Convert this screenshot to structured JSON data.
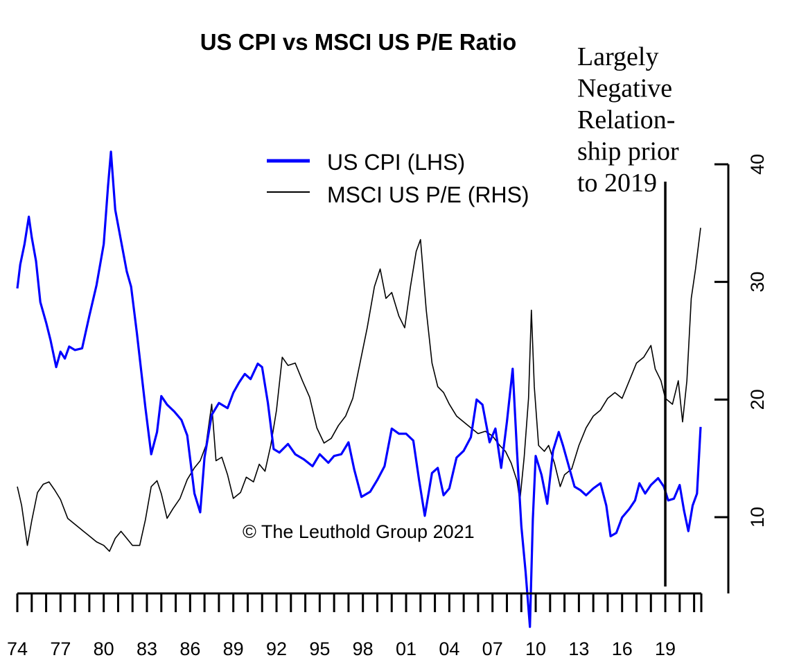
{
  "chart_data": {
    "type": "line",
    "title": "US CPI vs MSCI US P/E Ratio",
    "legend_placement": "top-center",
    "copyright": "© The Leuthold Group 2021",
    "annotation": [
      "Largely",
      "Negative",
      "Relation-",
      "ship prior",
      "to 2019"
    ],
    "x_range": [
      1974,
      2021.5
    ],
    "x_tick_labels": [
      "74",
      "77",
      "80",
      "83",
      "86",
      "89",
      "92",
      "95",
      "98",
      "01",
      "04",
      "07",
      "10",
      "13",
      "16",
      "19"
    ],
    "x_tick_years": [
      1974,
      1977,
      1980,
      1983,
      1986,
      1989,
      1992,
      1995,
      1998,
      2001,
      2004,
      2007,
      2010,
      2013,
      2016,
      2019
    ],
    "right_axis": {
      "label": "",
      "ylim": [
        3.5,
        40
      ],
      "ticks": [
        "10",
        "20",
        "30",
        "40"
      ],
      "tick_values": [
        10,
        20,
        30,
        40
      ]
    },
    "series": [
      {
        "name": "US CPI (LHS)",
        "axis": "left",
        "color": "#0000ff",
        "points": [
          [
            1974.0,
            14.6
          ],
          [
            1974.2,
            16.0
          ],
          [
            1974.5,
            17.2
          ],
          [
            1974.8,
            18.8
          ],
          [
            1975.0,
            17.6
          ],
          [
            1975.3,
            16.2
          ],
          [
            1975.6,
            13.8
          ],
          [
            1976.0,
            12.6
          ],
          [
            1976.3,
            11.6
          ],
          [
            1976.7,
            10.0
          ],
          [
            1977.0,
            10.9
          ],
          [
            1977.3,
            10.5
          ],
          [
            1977.6,
            11.2
          ],
          [
            1978.0,
            11.0
          ],
          [
            1978.5,
            11.1
          ],
          [
            1979.0,
            13.0
          ],
          [
            1979.5,
            14.8
          ],
          [
            1980.0,
            17.2
          ],
          [
            1980.3,
            20.6
          ],
          [
            1980.5,
            22.6
          ],
          [
            1980.8,
            19.2
          ],
          [
            1981.2,
            17.4
          ],
          [
            1981.6,
            15.6
          ],
          [
            1981.9,
            14.7
          ],
          [
            1982.3,
            12.0
          ],
          [
            1982.6,
            9.8
          ],
          [
            1982.9,
            7.6
          ],
          [
            1983.3,
            4.9
          ],
          [
            1983.7,
            6.2
          ],
          [
            1984.0,
            8.3
          ],
          [
            1984.4,
            7.8
          ],
          [
            1984.9,
            7.4
          ],
          [
            1985.4,
            6.9
          ],
          [
            1985.8,
            6.0
          ],
          [
            1986.3,
            2.6
          ],
          [
            1986.7,
            1.5
          ],
          [
            1987.0,
            4.7
          ],
          [
            1987.5,
            7.2
          ],
          [
            1988.0,
            7.9
          ],
          [
            1988.6,
            7.6
          ],
          [
            1989.0,
            8.5
          ],
          [
            1989.4,
            9.1
          ],
          [
            1989.8,
            9.6
          ],
          [
            1990.2,
            9.3
          ],
          [
            1990.7,
            10.2
          ],
          [
            1991.0,
            10.0
          ],
          [
            1991.4,
            7.9
          ],
          [
            1991.8,
            5.2
          ],
          [
            1992.2,
            5.0
          ],
          [
            1992.8,
            5.5
          ],
          [
            1993.3,
            4.9
          ],
          [
            1993.9,
            4.6
          ],
          [
            1994.5,
            4.2
          ],
          [
            1995.0,
            4.9
          ],
          [
            1995.6,
            4.4
          ],
          [
            1996.0,
            4.8
          ],
          [
            1996.5,
            4.9
          ],
          [
            1997.0,
            5.6
          ],
          [
            1997.4,
            4.0
          ],
          [
            1997.9,
            2.4
          ],
          [
            1998.5,
            2.7
          ],
          [
            1999.0,
            3.4
          ],
          [
            1999.5,
            4.2
          ],
          [
            2000.0,
            6.4
          ],
          [
            2000.5,
            6.1
          ],
          [
            2001.0,
            6.1
          ],
          [
            2001.5,
            5.7
          ],
          [
            2001.9,
            3.4
          ],
          [
            2002.3,
            1.3
          ],
          [
            2002.8,
            3.8
          ],
          [
            2003.2,
            4.1
          ],
          [
            2003.6,
            2.5
          ],
          [
            2004.0,
            2.9
          ],
          [
            2004.5,
            4.7
          ],
          [
            2005.0,
            5.1
          ],
          [
            2005.5,
            5.9
          ],
          [
            2005.9,
            8.1
          ],
          [
            2006.3,
            7.8
          ],
          [
            2006.8,
            5.6
          ],
          [
            2007.2,
            6.4
          ],
          [
            2007.6,
            4.1
          ],
          [
            2008.0,
            6.8
          ],
          [
            2008.4,
            9.9
          ],
          [
            2008.7,
            5.1
          ],
          [
            2009.0,
            0.7
          ],
          [
            2009.3,
            -2.0
          ],
          [
            2009.6,
            -5.2
          ],
          [
            2009.8,
            1.1
          ],
          [
            2010.0,
            4.8
          ],
          [
            2010.4,
            3.7
          ],
          [
            2010.8,
            2.0
          ],
          [
            2011.2,
            5.1
          ],
          [
            2011.6,
            6.2
          ],
          [
            2011.9,
            5.4
          ],
          [
            2012.3,
            4.2
          ],
          [
            2012.7,
            3.0
          ],
          [
            2013.1,
            2.8
          ],
          [
            2013.5,
            2.5
          ],
          [
            2014.0,
            2.9
          ],
          [
            2014.5,
            3.2
          ],
          [
            2014.9,
            1.9
          ],
          [
            2015.2,
            0.1
          ],
          [
            2015.6,
            0.3
          ],
          [
            2016.0,
            1.2
          ],
          [
            2016.5,
            1.7
          ],
          [
            2016.9,
            2.2
          ],
          [
            2017.2,
            3.2
          ],
          [
            2017.6,
            2.6
          ],
          [
            2018.0,
            3.1
          ],
          [
            2018.5,
            3.5
          ],
          [
            2018.9,
            3.0
          ],
          [
            2019.2,
            2.2
          ],
          [
            2019.6,
            2.3
          ],
          [
            2020.0,
            3.1
          ],
          [
            2020.3,
            1.6
          ],
          [
            2020.6,
            0.4
          ],
          [
            2020.9,
            1.9
          ],
          [
            2021.2,
            2.6
          ],
          [
            2021.45,
            6.5
          ]
        ]
      },
      {
        "name": "MSCI US P/E (RHS)",
        "axis": "right",
        "color": "#000000",
        "points": [
          [
            1974.0,
            12.6
          ],
          [
            1974.3,
            11.0
          ],
          [
            1974.7,
            7.6
          ],
          [
            1975.0,
            9.7
          ],
          [
            1975.4,
            12.1
          ],
          [
            1975.8,
            12.8
          ],
          [
            1976.2,
            13.0
          ],
          [
            1976.6,
            12.3
          ],
          [
            1977.0,
            11.5
          ],
          [
            1977.5,
            9.9
          ],
          [
            1978.0,
            9.4
          ],
          [
            1978.5,
            8.9
          ],
          [
            1979.0,
            8.4
          ],
          [
            1979.5,
            7.9
          ],
          [
            1980.0,
            7.6
          ],
          [
            1980.4,
            7.1
          ],
          [
            1980.8,
            8.2
          ],
          [
            1981.2,
            8.8
          ],
          [
            1981.6,
            8.2
          ],
          [
            1982.0,
            7.6
          ],
          [
            1982.5,
            7.6
          ],
          [
            1982.9,
            9.8
          ],
          [
            1983.3,
            12.6
          ],
          [
            1983.7,
            13.1
          ],
          [
            1984.0,
            12.0
          ],
          [
            1984.4,
            9.9
          ],
          [
            1984.8,
            10.7
          ],
          [
            1985.3,
            11.6
          ],
          [
            1985.8,
            13.2
          ],
          [
            1986.3,
            14.2
          ],
          [
            1986.7,
            14.8
          ],
          [
            1987.1,
            16.1
          ],
          [
            1987.5,
            19.6
          ],
          [
            1987.8,
            14.8
          ],
          [
            1988.2,
            15.1
          ],
          [
            1988.6,
            13.6
          ],
          [
            1989.0,
            11.6
          ],
          [
            1989.5,
            12.1
          ],
          [
            1989.9,
            13.4
          ],
          [
            1990.4,
            13.0
          ],
          [
            1990.8,
            14.5
          ],
          [
            1991.2,
            13.9
          ],
          [
            1991.6,
            16.1
          ],
          [
            1992.0,
            19.1
          ],
          [
            1992.4,
            23.6
          ],
          [
            1992.8,
            22.9
          ],
          [
            1993.3,
            23.1
          ],
          [
            1993.8,
            21.6
          ],
          [
            1994.3,
            20.2
          ],
          [
            1994.8,
            17.6
          ],
          [
            1995.3,
            16.3
          ],
          [
            1995.8,
            16.7
          ],
          [
            1996.3,
            17.8
          ],
          [
            1996.8,
            18.6
          ],
          [
            1997.3,
            20.1
          ],
          [
            1997.8,
            23.1
          ],
          [
            1998.3,
            26.1
          ],
          [
            1998.8,
            29.6
          ],
          [
            1999.2,
            31.1
          ],
          [
            1999.6,
            28.6
          ],
          [
            2000.0,
            29.1
          ],
          [
            2000.5,
            27.1
          ],
          [
            2000.9,
            26.1
          ],
          [
            2001.3,
            29.6
          ],
          [
            2001.7,
            32.6
          ],
          [
            2002.0,
            33.6
          ],
          [
            2002.4,
            27.6
          ],
          [
            2002.8,
            23.1
          ],
          [
            2003.2,
            21.1
          ],
          [
            2003.6,
            20.6
          ],
          [
            2004.0,
            19.6
          ],
          [
            2004.5,
            18.6
          ],
          [
            2005.0,
            18.1
          ],
          [
            2005.5,
            17.6
          ],
          [
            2006.0,
            17.1
          ],
          [
            2006.5,
            17.3
          ],
          [
            2007.0,
            16.9
          ],
          [
            2007.5,
            16.1
          ],
          [
            2007.9,
            15.6
          ],
          [
            2008.3,
            14.6
          ],
          [
            2008.7,
            13.1
          ],
          [
            2008.9,
            11.4
          ],
          [
            2009.2,
            15.1
          ],
          [
            2009.5,
            20.1
          ],
          [
            2009.7,
            27.6
          ],
          [
            2009.9,
            21.1
          ],
          [
            2010.2,
            16.1
          ],
          [
            2010.6,
            15.6
          ],
          [
            2010.9,
            16.1
          ],
          [
            2011.3,
            14.6
          ],
          [
            2011.7,
            12.6
          ],
          [
            2012.0,
            13.6
          ],
          [
            2012.5,
            14.1
          ],
          [
            2013.0,
            16.1
          ],
          [
            2013.5,
            17.6
          ],
          [
            2014.0,
            18.6
          ],
          [
            2014.5,
            19.1
          ],
          [
            2015.0,
            20.1
          ],
          [
            2015.5,
            20.6
          ],
          [
            2016.0,
            20.1
          ],
          [
            2016.5,
            21.6
          ],
          [
            2017.0,
            23.1
          ],
          [
            2017.5,
            23.6
          ],
          [
            2018.0,
            24.6
          ],
          [
            2018.3,
            22.6
          ],
          [
            2018.7,
            21.6
          ],
          [
            2019.0,
            20.1
          ],
          [
            2019.5,
            19.6
          ],
          [
            2019.9,
            21.6
          ],
          [
            2020.2,
            18.1
          ],
          [
            2020.5,
            21.6
          ],
          [
            2020.8,
            28.6
          ],
          [
            2021.1,
            31.1
          ],
          [
            2021.45,
            34.6
          ]
        ]
      }
    ],
    "vertical_marker_year": 2019
  }
}
